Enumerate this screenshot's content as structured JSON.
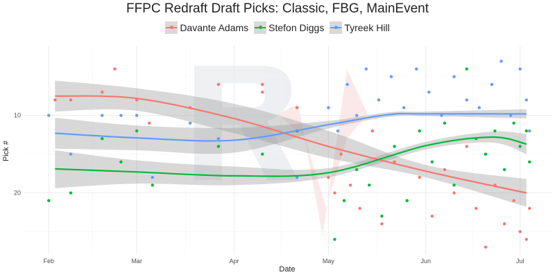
{
  "chart_data": {
    "type": "scatter",
    "title": "FFPC Redraft Draft Picks: Classic, FBG, MainEvent",
    "xlabel": "Date",
    "ylabel": "Pick #",
    "x_ticks": [
      {
        "label": "Feb",
        "value": "2021-02-01"
      },
      {
        "label": "Mar",
        "value": "2021-03-01"
      },
      {
        "label": "Apr",
        "value": "2021-04-01"
      },
      {
        "label": "May",
        "value": "2021-05-01"
      },
      {
        "label": "Jun",
        "value": "2021-06-01"
      },
      {
        "label": "Jul",
        "value": "2021-07-01"
      }
    ],
    "y_ticks": [
      10,
      20
    ],
    "xlim": [
      "2021-01-24",
      "2021-07-11"
    ],
    "ylim": [
      28,
      1
    ],
    "y_reversed": true,
    "grid": true,
    "legend_position": "top",
    "series": [
      {
        "name": "Davante Adams",
        "color": "#f8766d",
        "smooth": [
          {
            "x": "2021-02-03",
            "y": 7.5
          },
          {
            "x": "2021-03-01",
            "y": 7.8
          },
          {
            "x": "2021-04-01",
            "y": 10.4
          },
          {
            "x": "2021-05-01",
            "y": 14.0
          },
          {
            "x": "2021-06-01",
            "y": 17.2
          },
          {
            "x": "2021-07-03",
            "y": 20.0
          }
        ],
        "ci_low": [
          5.5,
          6.5,
          8.5,
          12.0,
          16.4,
          18.2
        ],
        "ci_high": [
          9.5,
          9.4,
          12.3,
          15.5,
          18.0,
          21.8
        ],
        "points": [
          {
            "x": "2021-02-03",
            "y": 8
          },
          {
            "x": "2021-02-08",
            "y": 8
          },
          {
            "x": "2021-02-18",
            "y": 7
          },
          {
            "x": "2021-02-22",
            "y": 4
          },
          {
            "x": "2021-03-01",
            "y": 8
          },
          {
            "x": "2021-03-05",
            "y": 11
          },
          {
            "x": "2021-03-18",
            "y": 9
          },
          {
            "x": "2021-03-27",
            "y": 6
          },
          {
            "x": "2021-04-10",
            "y": 6
          },
          {
            "x": "2021-04-10",
            "y": 7
          },
          {
            "x": "2021-04-21",
            "y": 9
          },
          {
            "x": "2021-05-01",
            "y": 18
          },
          {
            "x": "2021-05-03",
            "y": 20
          },
          {
            "x": "2021-05-05",
            "y": 15
          },
          {
            "x": "2021-05-08",
            "y": 19
          },
          {
            "x": "2021-05-11",
            "y": 22
          },
          {
            "x": "2021-05-15",
            "y": 12
          },
          {
            "x": "2021-05-18",
            "y": 24
          },
          {
            "x": "2021-05-22",
            "y": 16
          },
          {
            "x": "2021-05-26",
            "y": 21
          },
          {
            "x": "2021-05-30",
            "y": 18
          },
          {
            "x": "2021-06-03",
            "y": 23
          },
          {
            "x": "2021-06-07",
            "y": 17
          },
          {
            "x": "2021-06-10",
            "y": 20
          },
          {
            "x": "2021-06-14",
            "y": 14
          },
          {
            "x": "2021-06-17",
            "y": 22
          },
          {
            "x": "2021-06-20",
            "y": 27
          },
          {
            "x": "2021-06-23",
            "y": 19
          },
          {
            "x": "2021-06-26",
            "y": 24
          },
          {
            "x": "2021-06-29",
            "y": 21
          },
          {
            "x": "2021-07-01",
            "y": 25
          },
          {
            "x": "2021-07-03",
            "y": 26
          },
          {
            "x": "2021-07-04",
            "y": 22
          }
        ]
      },
      {
        "name": "Stefon Diggs",
        "color": "#00ba38",
        "smooth": [
          {
            "x": "2021-02-03",
            "y": 16.9
          },
          {
            "x": "2021-03-01",
            "y": 17.3
          },
          {
            "x": "2021-04-01",
            "y": 17.8
          },
          {
            "x": "2021-05-01",
            "y": 17.4
          },
          {
            "x": "2021-06-01",
            "y": 13.9
          },
          {
            "x": "2021-06-22",
            "y": 12.8
          },
          {
            "x": "2021-07-03",
            "y": 13.7
          }
        ],
        "ci_low": [
          14.5,
          15.8,
          16.6,
          16.8,
          13.4,
          12.1,
          12.4
        ],
        "ci_high": [
          19.4,
          18.8,
          19.0,
          18.0,
          14.4,
          13.5,
          15.0
        ],
        "points": [
          {
            "x": "2021-02-01",
            "y": 21
          },
          {
            "x": "2021-02-08",
            "y": 20
          },
          {
            "x": "2021-02-18",
            "y": 13
          },
          {
            "x": "2021-02-24",
            "y": 16
          },
          {
            "x": "2021-03-01",
            "y": 12
          },
          {
            "x": "2021-03-06",
            "y": 19
          },
          {
            "x": "2021-03-27",
            "y": 14
          },
          {
            "x": "2021-04-10",
            "y": 15
          },
          {
            "x": "2021-04-21",
            "y": 12
          },
          {
            "x": "2021-05-03",
            "y": 26
          },
          {
            "x": "2021-05-06",
            "y": 21
          },
          {
            "x": "2021-05-10",
            "y": 17
          },
          {
            "x": "2021-05-14",
            "y": 19
          },
          {
            "x": "2021-05-18",
            "y": 23
          },
          {
            "x": "2021-05-22",
            "y": 14
          },
          {
            "x": "2021-05-26",
            "y": 21
          },
          {
            "x": "2021-05-30",
            "y": 12
          },
          {
            "x": "2021-06-03",
            "y": 16
          },
          {
            "x": "2021-06-07",
            "y": 11
          },
          {
            "x": "2021-06-10",
            "y": 19
          },
          {
            "x": "2021-06-14",
            "y": 4
          },
          {
            "x": "2021-06-17",
            "y": 13
          },
          {
            "x": "2021-06-20",
            "y": 15
          },
          {
            "x": "2021-06-23",
            "y": 12
          },
          {
            "x": "2021-06-26",
            "y": 17
          },
          {
            "x": "2021-06-29",
            "y": 11
          },
          {
            "x": "2021-07-01",
            "y": 14
          },
          {
            "x": "2021-07-03",
            "y": 12
          },
          {
            "x": "2021-07-04",
            "y": 16
          }
        ]
      },
      {
        "name": "Tyreek Hill",
        "color": "#619cff",
        "smooth": [
          {
            "x": "2021-02-03",
            "y": 12.3
          },
          {
            "x": "2021-03-01",
            "y": 12.9
          },
          {
            "x": "2021-04-01",
            "y": 13.2
          },
          {
            "x": "2021-05-01",
            "y": 11.2
          },
          {
            "x": "2021-05-20",
            "y": 9.9
          },
          {
            "x": "2021-06-01",
            "y": 9.8
          },
          {
            "x": "2021-07-03",
            "y": 9.8
          }
        ],
        "ci_low": [
          10.3,
          11.3,
          11.6,
          10.7,
          9.6,
          9.5,
          9.2
        ],
        "ci_high": [
          14.3,
          14.5,
          14.8,
          11.7,
          10.2,
          10.1,
          10.4
        ],
        "points": [
          {
            "x": "2021-02-01",
            "y": 10
          },
          {
            "x": "2021-02-08",
            "y": 15
          },
          {
            "x": "2021-02-18",
            "y": 10
          },
          {
            "x": "2021-02-24",
            "y": 10
          },
          {
            "x": "2021-03-01",
            "y": 10
          },
          {
            "x": "2021-03-06",
            "y": 18
          },
          {
            "x": "2021-03-18",
            "y": 11
          },
          {
            "x": "2021-03-27",
            "y": 13
          },
          {
            "x": "2021-04-21",
            "y": 18
          },
          {
            "x": "2021-05-01",
            "y": 9
          },
          {
            "x": "2021-05-04",
            "y": 12
          },
          {
            "x": "2021-05-07",
            "y": 6
          },
          {
            "x": "2021-05-10",
            "y": 10
          },
          {
            "x": "2021-05-13",
            "y": 4
          },
          {
            "x": "2021-05-17",
            "y": 8
          },
          {
            "x": "2021-05-21",
            "y": 5
          },
          {
            "x": "2021-05-25",
            "y": 9
          },
          {
            "x": "2021-05-29",
            "y": 4
          },
          {
            "x": "2021-06-02",
            "y": 7
          },
          {
            "x": "2021-06-06",
            "y": 10
          },
          {
            "x": "2021-06-10",
            "y": 5
          },
          {
            "x": "2021-06-14",
            "y": 8
          },
          {
            "x": "2021-06-18",
            "y": 9
          },
          {
            "x": "2021-06-22",
            "y": 6
          },
          {
            "x": "2021-06-25",
            "y": 3
          },
          {
            "x": "2021-06-28",
            "y": 10
          },
          {
            "x": "2021-07-01",
            "y": 4
          },
          {
            "x": "2021-07-03",
            "y": 8
          },
          {
            "x": "2021-07-04",
            "y": 12
          }
        ]
      }
    ]
  }
}
